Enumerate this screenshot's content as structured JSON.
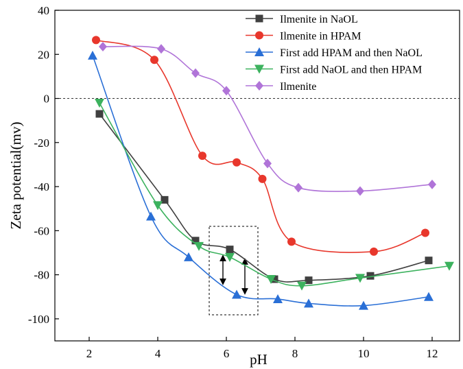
{
  "chart_data": {
    "type": "line",
    "xlabel": "pH",
    "ylabel": "Zeta potential(mv)",
    "xlim": [
      1,
      12.8
    ],
    "ylim": [
      -110,
      40
    ],
    "xticks": [
      2,
      4,
      6,
      8,
      10,
      12
    ],
    "yticks": [
      40,
      20,
      0,
      -20,
      -40,
      -60,
      -80,
      -100
    ],
    "zero_line": "dashed",
    "legend_position": "top-right",
    "annotation": "dashed rectangle highlighting pH 5.5-7 with double-headed arrows",
    "series": [
      {
        "name": "Ilmenite in NaOL",
        "color": "#404040",
        "marker": "square",
        "x": [
          2.3,
          4.2,
          5.1,
          6.1,
          7.4,
          8.4,
          10.2,
          11.9
        ],
        "y": [
          -7,
          -46,
          -64.5,
          -68.5,
          -82,
          -82.5,
          -80.5,
          -73.5
        ]
      },
      {
        "name": "Ilmenite in HPAM",
        "color": "#e8372c",
        "marker": "circle",
        "x": [
          2.2,
          3.9,
          5.3,
          6.3,
          7.05,
          7.9,
          10.3,
          11.8
        ],
        "y": [
          26.5,
          17.5,
          -26,
          -29,
          -36.5,
          -65,
          -69.5,
          -61
        ]
      },
      {
        "name": "First add HPAM and then NaOL",
        "color": "#2a6fd6",
        "marker": "triangle-up",
        "x": [
          2.1,
          3.8,
          4.9,
          6.3,
          7.5,
          8.4,
          10.0,
          11.9
        ],
        "y": [
          19.5,
          -53.5,
          -72,
          -89,
          -91,
          -93,
          -94,
          -90
        ]
      },
      {
        "name": "First add NaOL and then HPAM",
        "color": "#3cb25e",
        "marker": "triangle-down",
        "x": [
          2.3,
          4.0,
          5.2,
          6.1,
          7.3,
          8.2,
          9.9,
          12.5
        ],
        "y": [
          -2,
          -48.5,
          -67,
          -72,
          -82,
          -85,
          -81.5,
          -76
        ]
      },
      {
        "name": "Ilmenite",
        "color": "#b074d8",
        "marker": "diamond",
        "x": [
          2.4,
          4.1,
          5.1,
          6.0,
          7.2,
          8.1,
          9.9,
          12.0
        ],
        "y": [
          23.5,
          22.5,
          11.5,
          3.5,
          -29.5,
          -40.5,
          -42,
          -39
        ]
      }
    ]
  }
}
